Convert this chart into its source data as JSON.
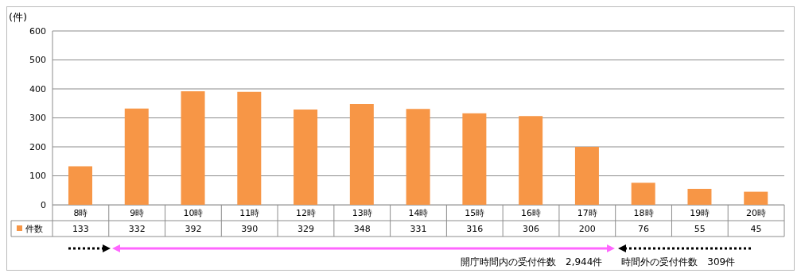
{
  "chart_data": {
    "type": "bar",
    "ylabel": "(件)",
    "categories": [
      "8時",
      "9時",
      "10時",
      "11時",
      "12時",
      "13時",
      "14時",
      "15時",
      "16時",
      "17時",
      "18時",
      "19時",
      "20時"
    ],
    "series": [
      {
        "name": "件数",
        "color": "#f79646",
        "values": [
          133,
          332,
          392,
          390,
          329,
          348,
          331,
          316,
          306,
          200,
          76,
          55,
          45
        ]
      }
    ],
    "ylim": [
      0,
      600
    ],
    "yticks": [
      0,
      100,
      200,
      300,
      400,
      500,
      600
    ],
    "grid": "y",
    "legend": "bottom left",
    "data_labels": true,
    "annotations": [
      "開庁時間内の受付件数　2,944件",
      "時間外の受付件数　309件"
    ]
  }
}
